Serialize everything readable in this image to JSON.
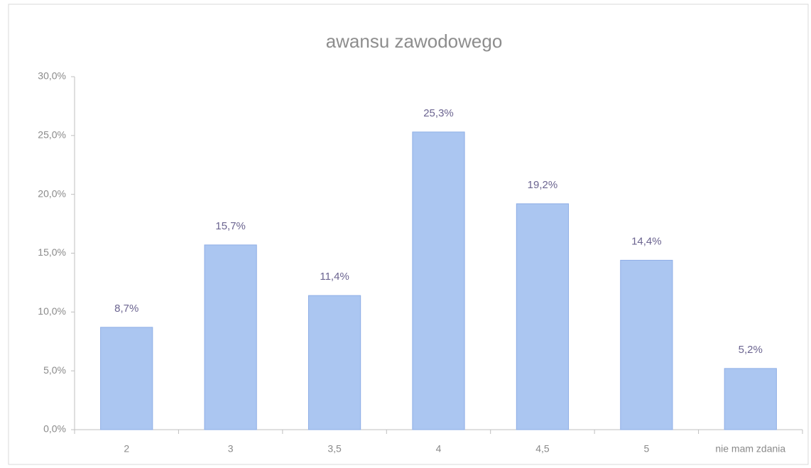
{
  "chart_data": {
    "type": "bar",
    "title": "awansu zawodowego",
    "categories": [
      "2",
      "3",
      "3,5",
      "4",
      "4,5",
      "5",
      "nie mam zdania"
    ],
    "values": [
      8.7,
      15.7,
      11.4,
      25.3,
      19.2,
      14.4,
      5.2
    ],
    "value_labels": [
      "8,7%",
      "15,7%",
      "11,4%",
      "25,3%",
      "19,2%",
      "14,4%",
      "5,2%"
    ],
    "color": "#abc6f1",
    "ylim": [
      0,
      30
    ],
    "yticks": [
      {
        "value": 0,
        "label": "0,0%"
      },
      {
        "value": 5,
        "label": "5,0%"
      },
      {
        "value": 10,
        "label": "10,0%"
      },
      {
        "value": 15,
        "label": "15,0%"
      },
      {
        "value": 20,
        "label": "20,0%"
      },
      {
        "value": 25,
        "label": "25,0%"
      },
      {
        "value": 30,
        "label": "30,0%"
      }
    ]
  }
}
